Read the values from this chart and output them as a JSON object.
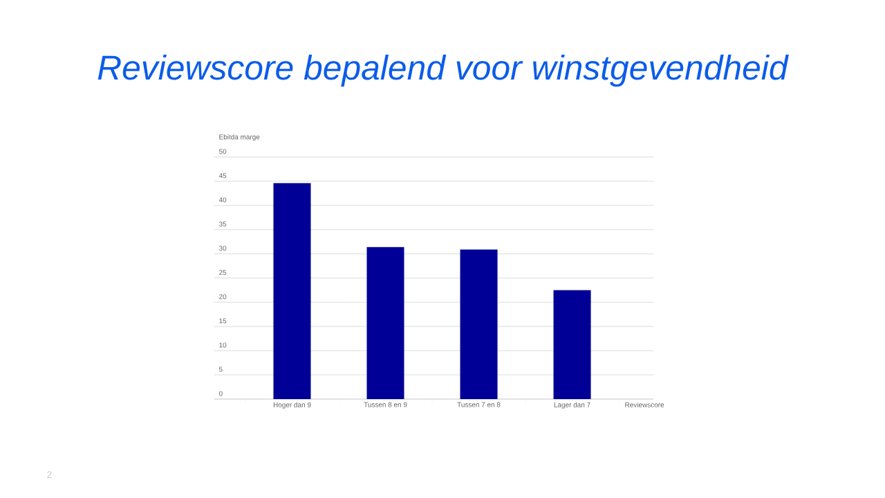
{
  "chart_data": {
    "type": "bar",
    "title": "Reviewscore bepalend voor winstgevendheid",
    "ylabel": "Ebitda marge",
    "xlabel": "Reviewscore",
    "categories": [
      "Hoger dan 9",
      "Tussen 8 en 9",
      "Tussen 7 en 8",
      "Lager dan 7"
    ],
    "values": [
      44.6,
      31.4,
      30.9,
      22.5
    ],
    "color": "#000096",
    "ylim": [
      0,
      50
    ],
    "yticks": [
      0,
      5,
      10,
      15,
      20,
      25,
      30,
      35,
      40,
      45,
      50
    ],
    "grid": "y",
    "annotations": [
      "2"
    ]
  }
}
